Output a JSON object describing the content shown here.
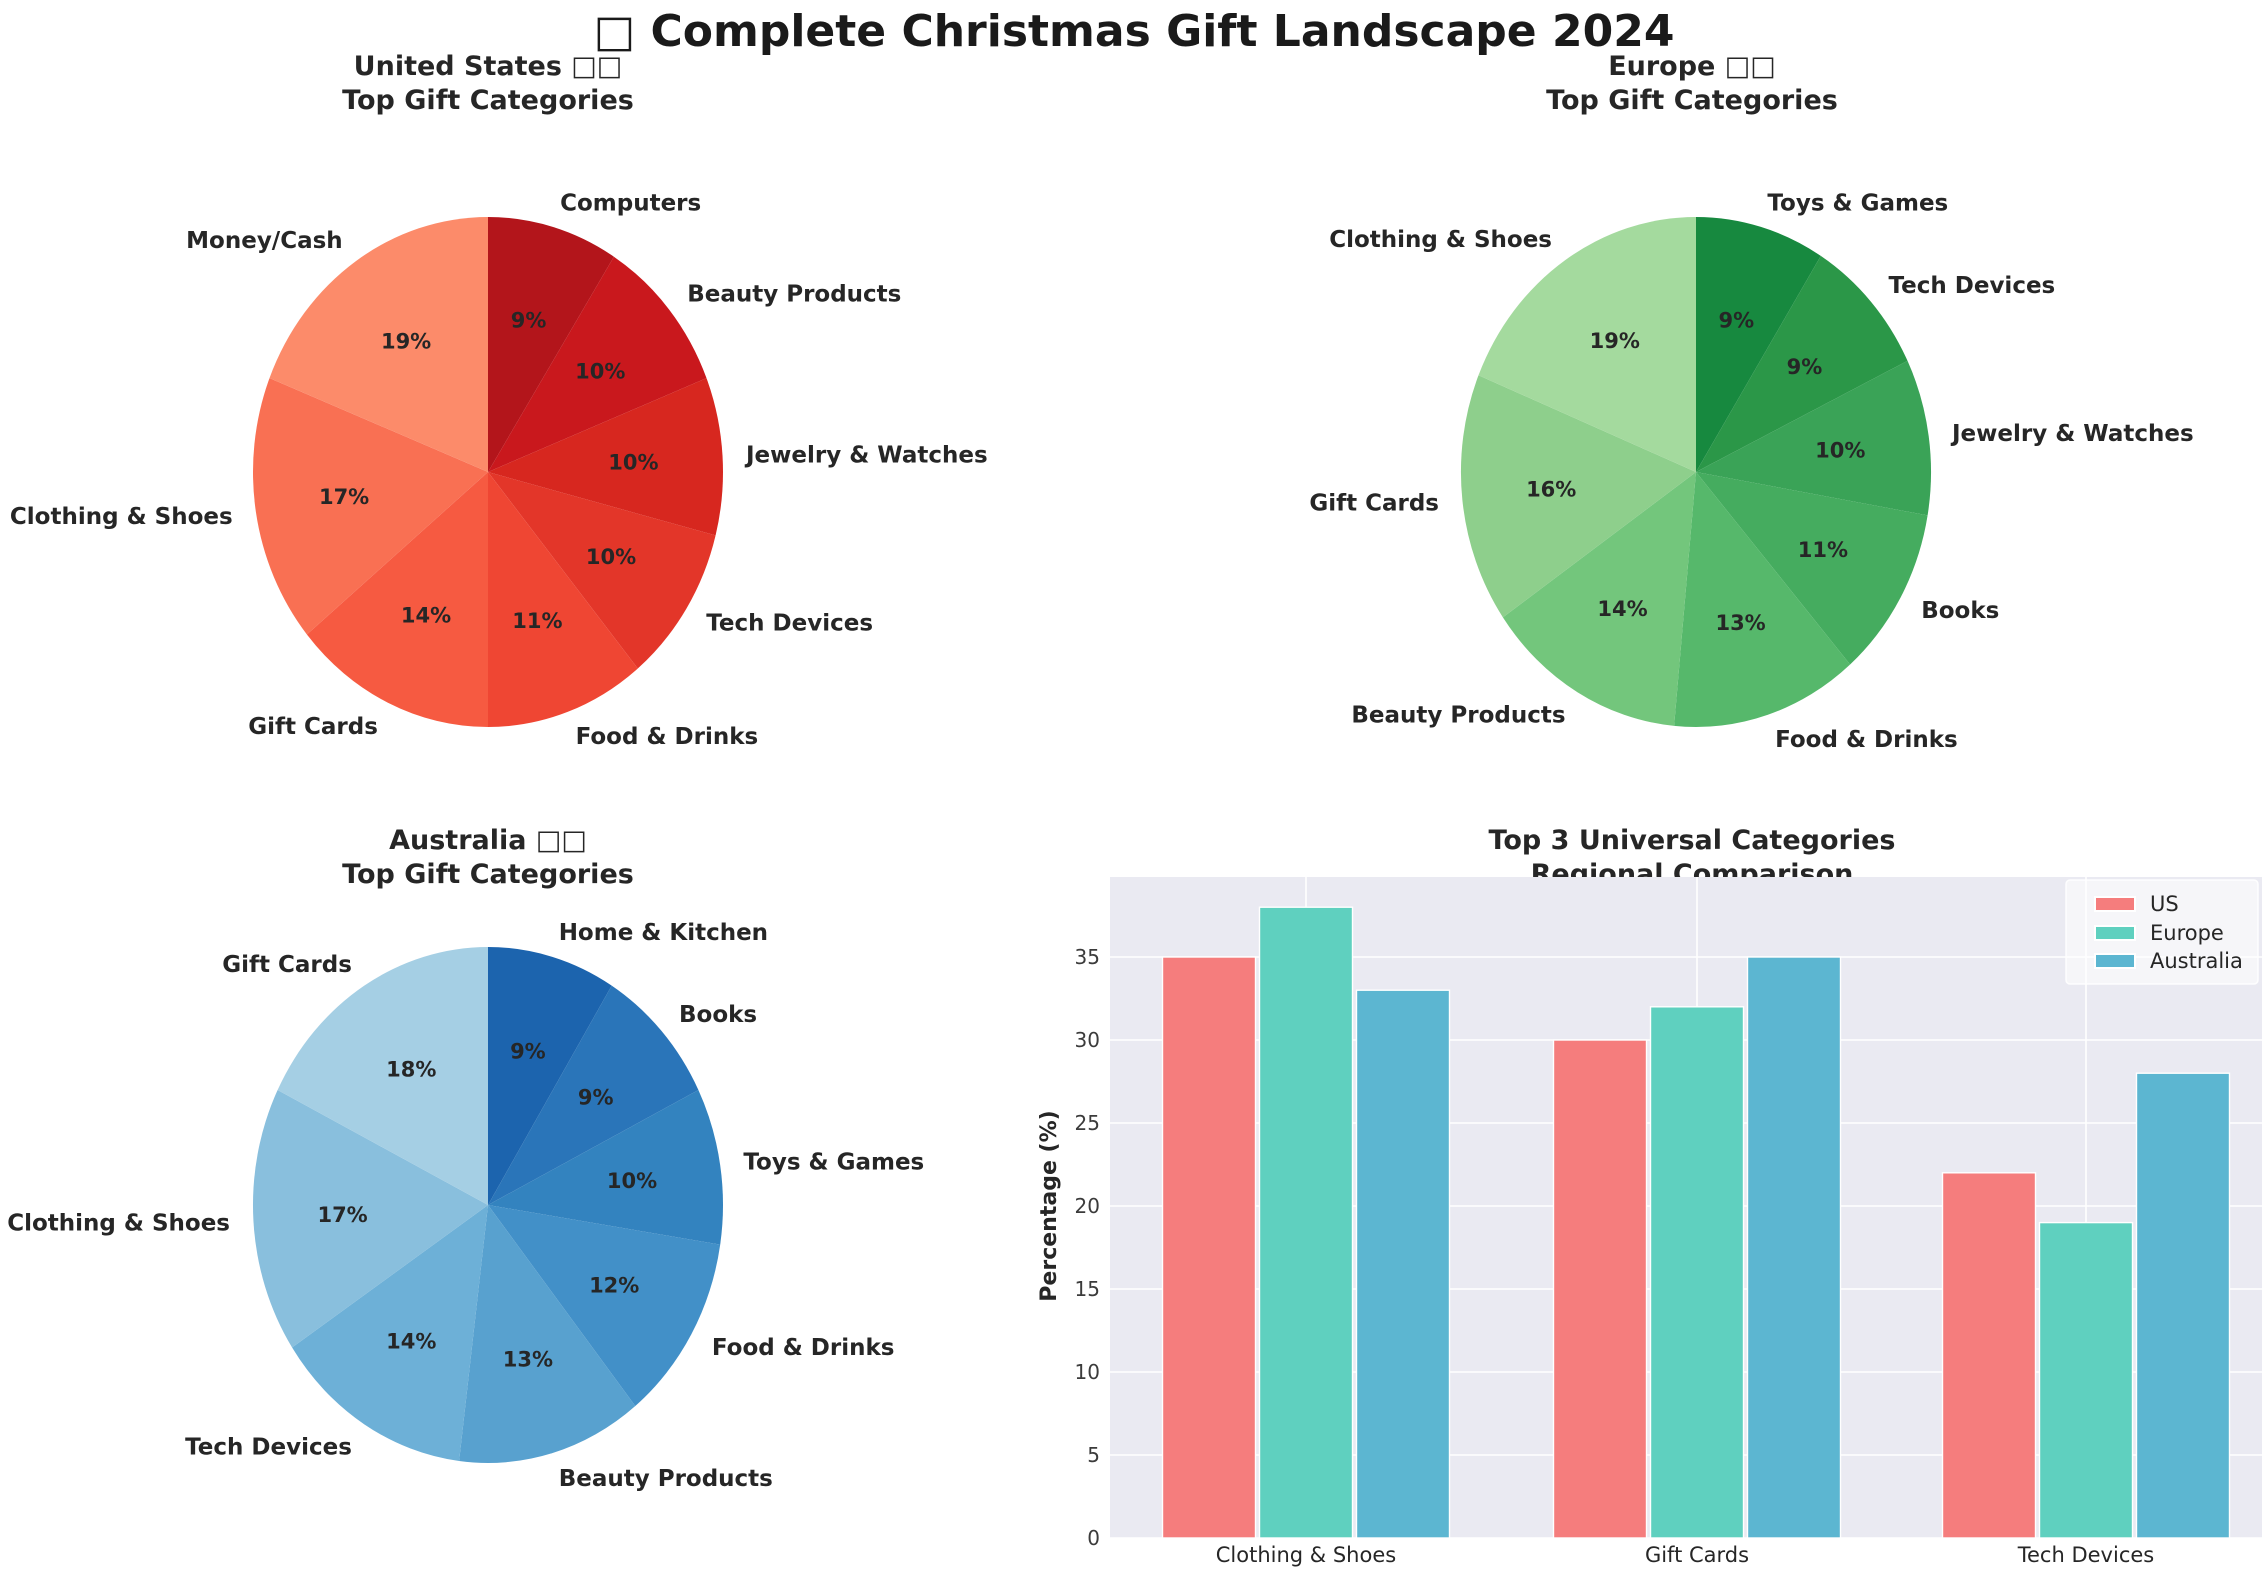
{
  "main_title": "□ Complete Christmas Gift Landscape 2024",
  "text_color": "#262626",
  "chart_data": [
    {
      "type": "pie",
      "id": "us",
      "title1": "United States □□",
      "title2": "Top Gift Categories",
      "labels": [
        "Computers",
        "Beauty Products",
        "Jewelry & Watches",
        "Tech Devices",
        "Food & Drinks",
        "Gift Cards",
        "Clothing & Shoes",
        "Money/Cash"
      ],
      "values": [
        9,
        10,
        10,
        10,
        11,
        14,
        17,
        19
      ],
      "percent_labels": [
        "9%",
        "10%",
        "10%",
        "10%",
        "11%",
        "14%",
        "17%",
        "19%"
      ],
      "colors": [
        "#b3151b",
        "#c9181d",
        "#d7271f",
        "#e33629",
        "#ef4633",
        "#f65a41",
        "#f97053",
        "#fc8b6a"
      ]
    },
    {
      "type": "pie",
      "id": "europe",
      "title1": "Europe □□",
      "title2": "Top Gift Categories",
      "labels": [
        "Toys & Games",
        "Tech Devices",
        "Jewelry & Watches",
        "Books",
        "Food & Drinks",
        "Beauty Products",
        "Gift Cards",
        "Clothing & Shoes"
      ],
      "values": [
        9,
        9,
        10,
        11,
        13,
        14,
        16,
        19
      ],
      "percent_labels": [
        "9%",
        "9%",
        "10%",
        "11%",
        "13%",
        "14%",
        "16%",
        "19%"
      ],
      "colors": [
        "#17893f",
        "#2b9748",
        "#3aa357",
        "#45ac5f",
        "#56b86b",
        "#73c67c",
        "#8ecf8c",
        "#a4da9e"
      ]
    },
    {
      "type": "pie",
      "id": "australia",
      "title1": "Australia □□",
      "title2": "Top Gift Categories",
      "labels": [
        "Home & Kitchen",
        "Books",
        "Toys & Games",
        "Food & Drinks",
        "Beauty Products",
        "Tech Devices",
        "Clothing & Shoes",
        "Gift Cards"
      ],
      "values": [
        9,
        9,
        10,
        12,
        13,
        14,
        17,
        18
      ],
      "percent_labels": [
        "9%",
        "9%",
        "10%",
        "12%",
        "13%",
        "14%",
        "17%",
        "18%"
      ],
      "colors": [
        "#1c64ae",
        "#2a75b9",
        "#3383bf",
        "#4290c8",
        "#58a1cf",
        "#6db0d7",
        "#89bfdd",
        "#a5cfe4"
      ]
    },
    {
      "type": "bar",
      "id": "regional",
      "title1": "Top 3 Universal Categories",
      "title2": "Regional Comparison",
      "categories": [
        "Clothing & Shoes",
        "Gift Cards",
        "Tech Devices"
      ],
      "series": [
        {
          "name": "US",
          "color": "#f57d7d",
          "values": [
            35,
            30,
            22
          ]
        },
        {
          "name": "Europe",
          "color": "#5fd0bf",
          "values": [
            38,
            32,
            19
          ]
        },
        {
          "name": "Australia",
          "color": "#5cb6d1",
          "values": [
            33,
            35,
            28
          ]
        }
      ],
      "ylabel": "Percentage (%)",
      "yticks": [
        0,
        5,
        10,
        15,
        20,
        25,
        30,
        35
      ],
      "ylim": [
        0,
        39.8
      ],
      "plot_bg": "#eaeaf2",
      "grid_color": "#ffffff",
      "legend_position": "upper right"
    }
  ]
}
